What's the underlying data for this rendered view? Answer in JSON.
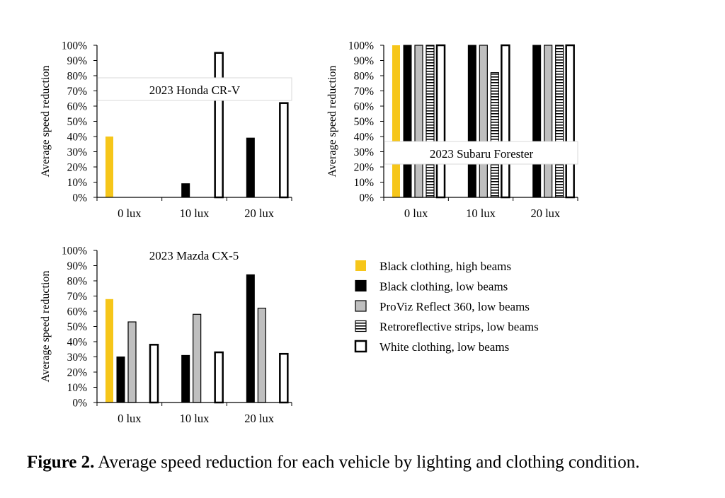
{
  "chart_data": [
    {
      "type": "bar",
      "title": "2023 Honda CR-V",
      "ylabel": "Average speed reduction",
      "ylim": [
        0,
        100
      ],
      "yticks": [
        "0%",
        "10%",
        "20%",
        "30%",
        "40%",
        "50%",
        "60%",
        "70%",
        "80%",
        "90%",
        "100%"
      ],
      "categories": [
        "0 lux",
        "10 lux",
        "20 lux"
      ],
      "series": [
        {
          "name": "Black clothing, high beams",
          "values": [
            40,
            null,
            null
          ]
        },
        {
          "name": "Black clothing, low beams",
          "values": [
            null,
            9,
            39
          ]
        },
        {
          "name": "ProViz Reflect 360, low beams",
          "values": [
            null,
            null,
            null
          ]
        },
        {
          "name": "Retroreflective strips, low beams",
          "values": [
            null,
            null,
            null
          ]
        },
        {
          "name": "White clothing, low beams",
          "values": [
            null,
            95,
            62
          ]
        }
      ]
    },
    {
      "type": "bar",
      "title": "2023 Subaru Forester",
      "ylabel": "Average speed reduction",
      "ylim": [
        0,
        100
      ],
      "yticks": [
        "0%",
        "10%",
        "20%",
        "30%",
        "40%",
        "50%",
        "60%",
        "70%",
        "80%",
        "90%",
        "100%"
      ],
      "categories": [
        "0 lux",
        "10 lux",
        "20 lux"
      ],
      "series": [
        {
          "name": "Black clothing, high beams",
          "values": [
            100,
            null,
            null
          ]
        },
        {
          "name": "Black clothing, low beams",
          "values": [
            100,
            100,
            100
          ]
        },
        {
          "name": "ProViz Reflect 360, low beams",
          "values": [
            100,
            100,
            100
          ]
        },
        {
          "name": "Retroreflective strips, low beams",
          "values": [
            100,
            82,
            100
          ]
        },
        {
          "name": "White clothing, low beams",
          "values": [
            100,
            100,
            100
          ]
        }
      ]
    },
    {
      "type": "bar",
      "title": "2023 Mazda CX-5",
      "ylabel": "Average speed reduction",
      "ylim": [
        0,
        100
      ],
      "yticks": [
        "0%",
        "10%",
        "20%",
        "30%",
        "40%",
        "50%",
        "60%",
        "70%",
        "80%",
        "90%",
        "100%"
      ],
      "categories": [
        "0 lux",
        "10 lux",
        "20 lux"
      ],
      "series": [
        {
          "name": "Black clothing, high beams",
          "values": [
            68,
            null,
            null
          ]
        },
        {
          "name": "Black clothing, low beams",
          "values": [
            30,
            31,
            84
          ]
        },
        {
          "name": "ProViz Reflect 360, low beams",
          "values": [
            53,
            58,
            62
          ]
        },
        {
          "name": "Retroreflective strips, low beams",
          "values": [
            null,
            null,
            null
          ]
        },
        {
          "name": "White clothing, low beams",
          "values": [
            38,
            33,
            32
          ]
        }
      ]
    }
  ],
  "legend": [
    {
      "label": "Black clothing, high beams",
      "style": "yellow"
    },
    {
      "label": "Black clothing, low beams",
      "style": "black"
    },
    {
      "label": "ProViz Reflect 360, low beams",
      "style": "gray"
    },
    {
      "label": "Retroreflective strips, low beams",
      "style": "striped"
    },
    {
      "label": "White clothing, low beams",
      "style": "white"
    }
  ],
  "colors": {
    "yellow": "#F6C61A",
    "black": "#000000",
    "gray": "#BFBFBF",
    "white": "#FFFFFF"
  },
  "caption": {
    "bold": "Figure 2.",
    "text": " Average speed reduction for each vehicle by lighting and clothing condition."
  }
}
